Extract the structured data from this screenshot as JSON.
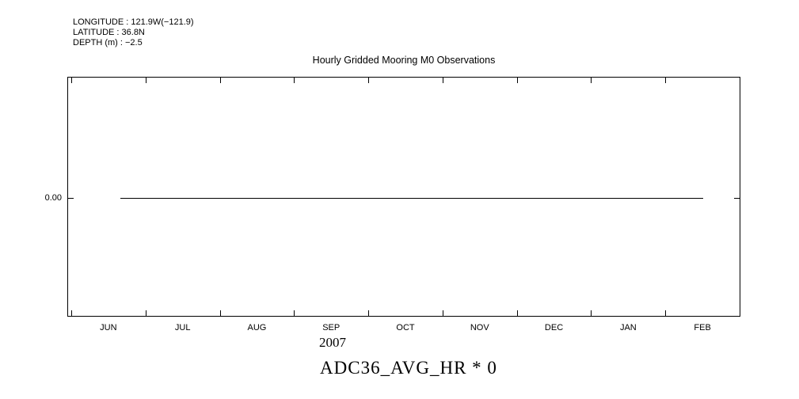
{
  "metadata": {
    "longitude": "LONGITUDE : 121.9W(−121.9)",
    "latitude": "LATITUDE : 36.8N",
    "depth": "DEPTH (m) : −2.5"
  },
  "chart_data": {
    "type": "line",
    "title": "Hourly Gridded Mooring M0 Observations",
    "x_tick_labels": [
      "JUN",
      "JUL",
      "AUG",
      "SEP",
      "OCT",
      "NOV",
      "DEC",
      "JAN",
      "FEB"
    ],
    "x_axis_year": "2007",
    "x_range": [
      "JUN 2007",
      "FEB 2008"
    ],
    "y_tick_labels": [
      "0.00"
    ],
    "grid": false,
    "legend": false,
    "series": [
      {
        "name": "ADC36_AVG_HR * 0",
        "description": "Constant horizontal line at 0.00 from mid-June 2007 through mid-February 2008",
        "x": [
          "mid-JUN 2007",
          "JUL 2007",
          "AUG 2007",
          "SEP 2007",
          "OCT 2007",
          "NOV 2007",
          "DEC 2007",
          "JAN 2008",
          "mid-FEB 2008"
        ],
        "values": [
          0,
          0,
          0,
          0,
          0,
          0,
          0,
          0,
          0
        ],
        "color": "#000000"
      }
    ]
  },
  "caption": {
    "text": "ADC36_AVG_HR * 0"
  }
}
